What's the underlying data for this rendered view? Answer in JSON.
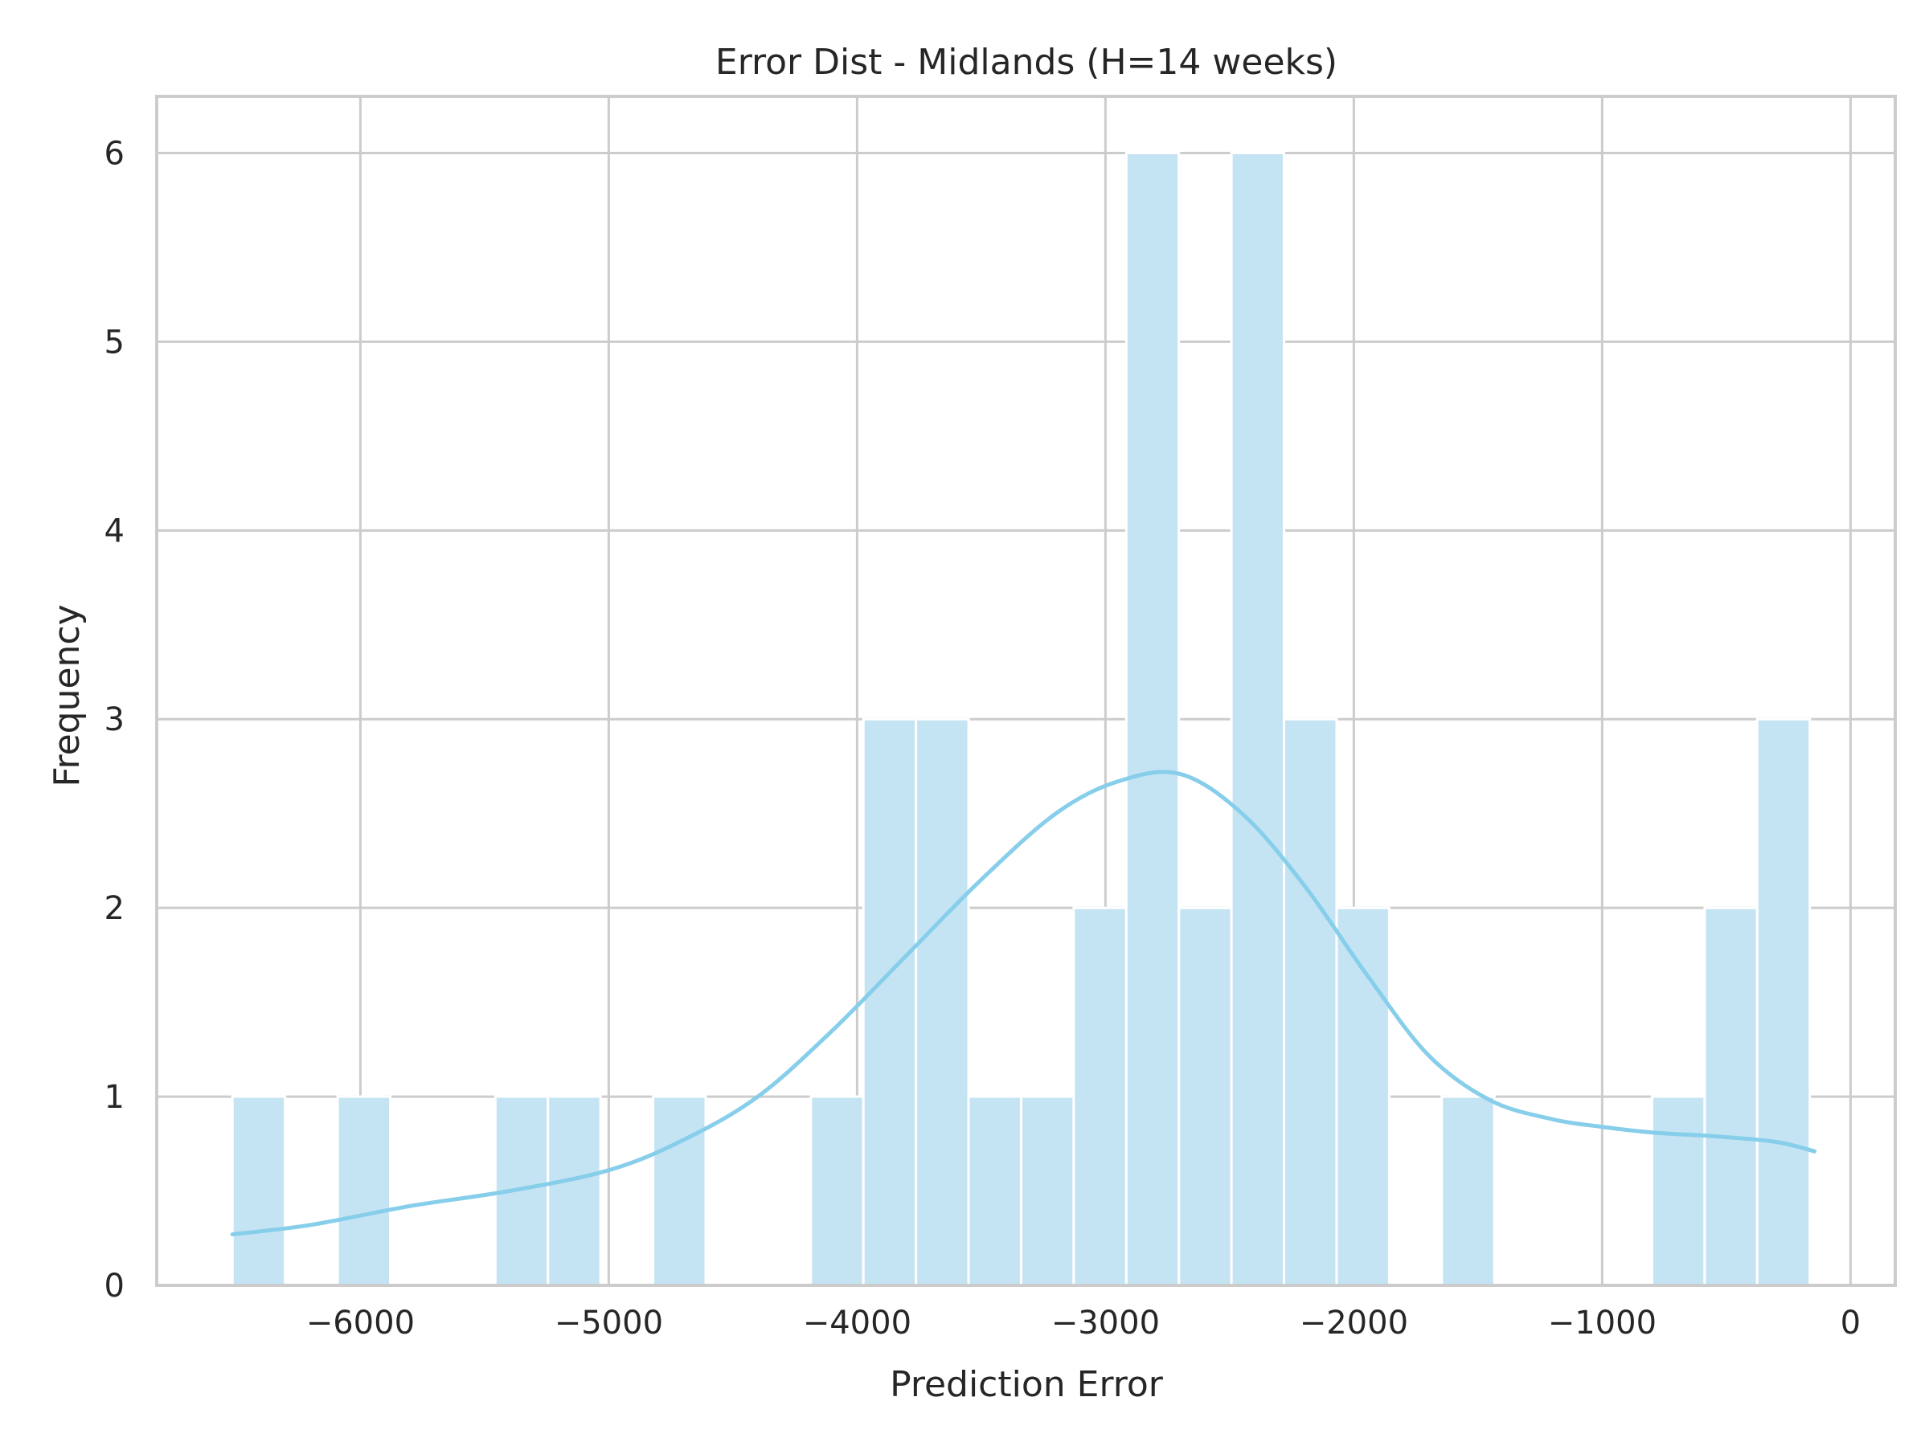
{
  "chart_data": {
    "type": "bar",
    "subtype": "histogram-with-kde",
    "title": "Error Dist - Midlands (H=14 weeks)",
    "xlabel": "Prediction Error",
    "ylabel": "Frequency",
    "xlim": [
      -6820,
      180
    ],
    "ylim": [
      0,
      6.3
    ],
    "xticks": [
      -6000,
      -5000,
      -4000,
      -3000,
      -2000,
      -1000,
      0
    ],
    "xtick_labels": [
      "−6000",
      "−5000",
      "−4000",
      "−3000",
      "−2000",
      "−1000",
      "0"
    ],
    "yticks": [
      0,
      1,
      2,
      3,
      4,
      5,
      6
    ],
    "ytick_labels": [
      "0",
      "1",
      "2",
      "3",
      "4",
      "5",
      "6"
    ],
    "grid": true,
    "bar_color": "#c4e4f3",
    "kde_color": "#87ceeb",
    "grid_color": "#cccccc",
    "bins": {
      "start": -6515,
      "width": 211.7,
      "counts": [
        1,
        0,
        1,
        0,
        0,
        1,
        1,
        0,
        1,
        0,
        0,
        1,
        3,
        3,
        1,
        1,
        2,
        6,
        2,
        6,
        3,
        2,
        0,
        1,
        0,
        0,
        0,
        1,
        2,
        3
      ]
    },
    "kde": {
      "x": [
        -6515,
        -6200,
        -5800,
        -5400,
        -5000,
        -4700,
        -4400,
        -4100,
        -3800,
        -3500,
        -3200,
        -2950,
        -2700,
        -2450,
        -2200,
        -1950,
        -1700,
        -1450,
        -1200,
        -1000,
        -800,
        -550,
        -300,
        -145
      ],
      "y": [
        0.27,
        0.32,
        0.42,
        0.5,
        0.61,
        0.77,
        1.0,
        1.35,
        1.75,
        2.15,
        2.5,
        2.67,
        2.71,
        2.5,
        2.12,
        1.65,
        1.22,
        0.98,
        0.88,
        0.84,
        0.81,
        0.79,
        0.76,
        0.71
      ]
    }
  }
}
